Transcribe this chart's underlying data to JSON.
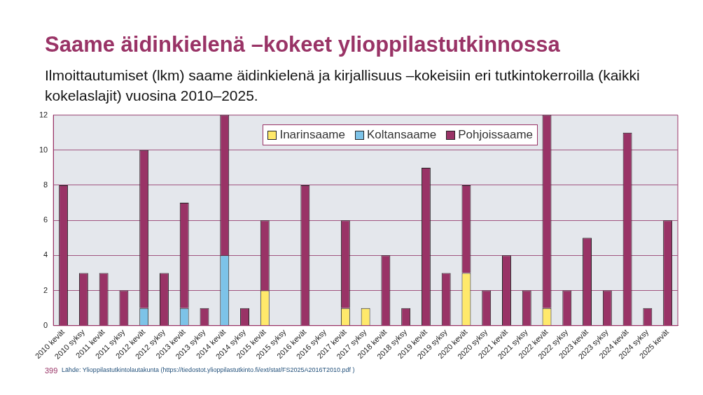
{
  "chart_data": {
    "type": "bar",
    "title": "Saame äidinkielenä –kokeet ylioppilastutkinnossa",
    "subtitle": "Ilmoittautumiset (lkm) saame äidinkielenä ja kirjallisuus –kokeisiin eri tutkintokerroilla (kaikki kokelaslajit) vuosina 2010–2025.",
    "categories": [
      "2010 kevät",
      "2010 syksy",
      "2011 kevät",
      "2011 syksy",
      "2012 kevät",
      "2012 syksy",
      "2013 kevät",
      "2013 syksy",
      "2014 kevät",
      "2014 syksy",
      "2015 kevät",
      "2015 syksy",
      "2016 kevät",
      "2016 syksy",
      "2017 kevät",
      "2017 syksy",
      "2018 kevät",
      "2018 syksy",
      "2019 kevät",
      "2019 syksy",
      "2020 kevät",
      "2020 syksy",
      "2021 kevät",
      "2021 syksy",
      "2022 kevät",
      "2022 syksy",
      "2023 kevät",
      "2023 syksy",
      "2024 kevät",
      "2024 syksy",
      "2025 kevät"
    ],
    "series": [
      {
        "name": "Inarinsaame",
        "color": "#ffe96b",
        "values": [
          0,
          0,
          0,
          0,
          0,
          0,
          0,
          0,
          0,
          0,
          2,
          0,
          0,
          0,
          1,
          1,
          0,
          0,
          0,
          0,
          3,
          0,
          0,
          0,
          1,
          0,
          0,
          0,
          0,
          0,
          0
        ]
      },
      {
        "name": "Koltansaame",
        "color": "#7dc3e8",
        "values": [
          0,
          0,
          0,
          0,
          1,
          0,
          1,
          0,
          4,
          0,
          0,
          0,
          0,
          0,
          0,
          0,
          0,
          0,
          0,
          0,
          0,
          0,
          0,
          0,
          0,
          0,
          0,
          0,
          0,
          0,
          0
        ]
      },
      {
        "name": "Pohjoissaame",
        "color": "#993366",
        "values": [
          8,
          3,
          3,
          2,
          9,
          3,
          6,
          1,
          8,
          1,
          4,
          0,
          8,
          0,
          5,
          0,
          4,
          1,
          9,
          3,
          5,
          2,
          4,
          2,
          11,
          2,
          5,
          2,
          11,
          1,
          6
        ]
      }
    ],
    "stacked": true,
    "ylim": [
      0,
      12
    ],
    "yticks": [
      0,
      2,
      4,
      6,
      8,
      10,
      12
    ],
    "grid": "y",
    "legend": "top right",
    "annotations": [
      "399",
      "Lähde: Ylioppilastutkintolautakunta  (https://tiedostot.ylioppilastutkinto.fi/ext/stat/FS2025A2016T2010.pdf    )"
    ]
  }
}
